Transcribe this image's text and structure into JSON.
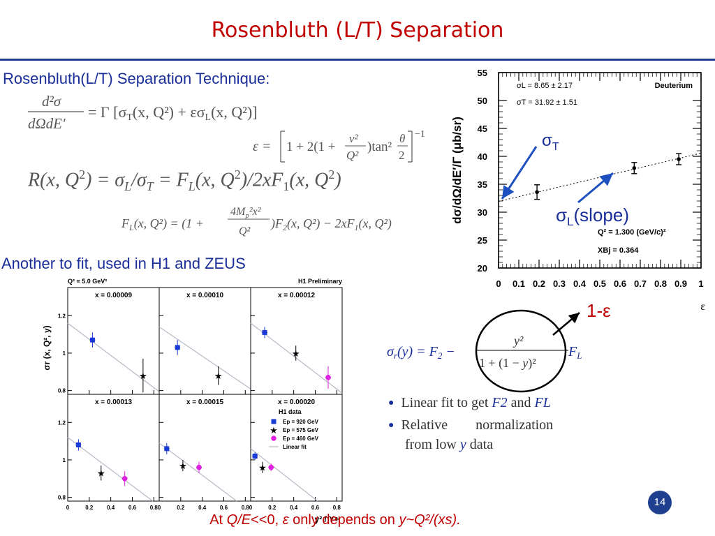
{
  "slide_title": "Rosenbluth (L/T) Separation",
  "heading_technique": "Rosenbluth(L/T) Separation Technique:",
  "heading_fit": "Another to fit, used in H1 and ZEUS",
  "equations": {
    "cross_section": "d²σ/dΩdE′ = Γ [σT(x,Q²) + εσL(x,Q²)]",
    "epsilon": "ε = [1 + 2(1 + ν²/Q²)tan²θ/2]⁻¹",
    "ratio": "R(x,Q²) = σL/σT = FL(x,Q²)/2xF1(x,Q²)",
    "fl": "FL(x,Q²) = (1 + 4Mp²x²/Q²)F2(x,Q²) − 2xF1(x,Q²)",
    "reduced": "σr(y) = F2 − y²/(1+(1−y)²) FL"
  },
  "bullets": [
    {
      "pre": "Linear fit to get ",
      "a": "F2",
      "mid": " and ",
      "b": "FL"
    },
    {
      "line1": "Relative        normalization",
      "line2a": "from low ",
      "var": "y",
      "line2b": " data"
    }
  ],
  "annotations": {
    "sigma_t": "σT",
    "sigma_l": "σL(slope)",
    "one_minus_eps": "1-ε"
  },
  "footnote": {
    "pre": "At ",
    "a": "Q/E",
    "b": "<<0, ",
    "c": "ε",
    "d": " only depends on ",
    "e": "y~Q²/(xs)."
  },
  "page_number": "14",
  "colors": {
    "title": "#c00000",
    "heading": "#1a2e9a",
    "rule": "#1f3f8f",
    "arrow": "#1f50c0",
    "h1_920": "#1a3ad8",
    "h1_575": "#000000",
    "h1_460": "#e020e0"
  },
  "chart_data": [
    {
      "type": "scatter",
      "title": "Deuterium",
      "ylabel": "dσ/dΩ/dE′/Γ (μb/sr)",
      "xlabel": "ε",
      "xlim": [
        0,
        1
      ],
      "ylim": [
        20,
        55
      ],
      "xticks": [
        "0",
        "0.1",
        "0.2",
        "0.3",
        "0.4",
        "0.5",
        "0.6",
        "0.7",
        "0.8",
        "0.9",
        "1"
      ],
      "yticks": [
        "20",
        "25",
        "30",
        "35",
        "40",
        "45",
        "50",
        "55"
      ],
      "points": [
        {
          "x": 0.19,
          "y": 33.6,
          "err": 1.3
        },
        {
          "x": 0.67,
          "y": 37.9,
          "err": 1.0
        },
        {
          "x": 0.89,
          "y": 39.5,
          "err": 1.0
        }
      ],
      "fit": {
        "intercept": 31.92,
        "slope": 8.65
      },
      "annotations": [
        "σL = 8.65 ± 2.17",
        "σT = 31.92 ± 1.51",
        "Q² = 1.300 (GeV/c)²",
        "XBj = 0.364"
      ]
    },
    {
      "type": "scatter",
      "title_left": "Q² = 5.0 GeV²",
      "title_right": "H1 Preliminary",
      "ylabel": "σr (x, Q², y)",
      "xlabel": "y² / Y+",
      "xlim": [
        0,
        0.85
      ],
      "ylim": [
        0.78,
        1.35
      ],
      "xticks": [
        "0",
        "0.2",
        "0.4",
        "0.6",
        "0.8"
      ],
      "yticks": [
        "0.8",
        "1",
        "1.2"
      ],
      "legend": {
        "title": "H1 data",
        "entries": [
          "Ep = 920 GeV",
          "Ep = 575 GeV",
          "Ep = 460 GeV",
          "Linear fit"
        ]
      },
      "panels": [
        {
          "label": "x = 0.00009",
          "fit": [
            1.16,
            -0.43
          ],
          "points": [
            {
              "s": 0,
              "x": 0.23,
              "y": 1.07,
              "e": 0.04
            },
            {
              "s": 1,
              "x": 0.7,
              "y": 0.88,
              "e": 0.09
            }
          ]
        },
        {
          "label": "x = 0.00010",
          "fit": [
            1.14,
            -0.39
          ],
          "points": [
            {
              "s": 0,
              "x": 0.17,
              "y": 1.03,
              "e": 0.04
            },
            {
              "s": 1,
              "x": 0.55,
              "y": 0.88,
              "e": 0.05
            }
          ]
        },
        {
          "label": "x = 0.00012",
          "fit": [
            1.16,
            -0.44
          ],
          "points": [
            {
              "s": 0,
              "x": 0.13,
              "y": 1.11,
              "e": 0.03
            },
            {
              "s": 1,
              "x": 0.42,
              "y": 1.0,
              "e": 0.04
            },
            {
              "s": 2,
              "x": 0.72,
              "y": 0.87,
              "e": 0.06
            }
          ]
        },
        {
          "label": "x = 0.00013",
          "fit": [
            1.12,
            -0.43
          ],
          "points": [
            {
              "s": 0,
              "x": 0.1,
              "y": 1.08,
              "e": 0.03
            },
            {
              "s": 1,
              "x": 0.31,
              "y": 0.93,
              "e": 0.04
            },
            {
              "s": 2,
              "x": 0.53,
              "y": 0.9,
              "e": 0.04
            }
          ]
        },
        {
          "label": "x = 0.00015",
          "fit": [
            1.09,
            -0.43
          ],
          "points": [
            {
              "s": 0,
              "x": 0.07,
              "y": 1.06,
              "e": 0.03
            },
            {
              "s": 1,
              "x": 0.22,
              "y": 0.97,
              "e": 0.03
            },
            {
              "s": 2,
              "x": 0.37,
              "y": 0.96,
              "e": 0.03
            }
          ]
        },
        {
          "label": "x = 0.00020",
          "fit": [
            1.06,
            -0.45
          ],
          "points": [
            {
              "s": 0,
              "x": 0.04,
              "y": 1.02,
              "e": 0.02
            },
            {
              "s": 1,
              "x": 0.11,
              "y": 0.96,
              "e": 0.03
            },
            {
              "s": 2,
              "x": 0.19,
              "y": 0.96,
              "e": 0.02
            }
          ]
        }
      ]
    }
  ]
}
